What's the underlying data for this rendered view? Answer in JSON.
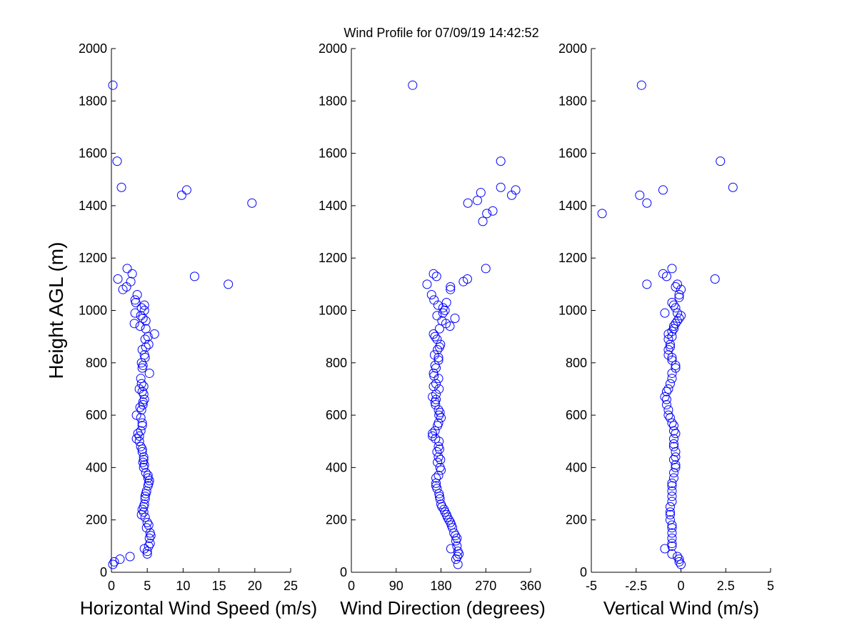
{
  "title": "Wind Profile for  07/09/19 14:42:52",
  "colors": {
    "marker": "#0000ff",
    "axis": "#000000",
    "background": "#ffffff"
  },
  "chart_data": [
    {
      "type": "scatter",
      "xlabel": "Horizontal Wind Speed (m/s)",
      "ylabel": "Height AGL (m)",
      "xlim": [
        0,
        25
      ],
      "ylim": [
        0,
        2000
      ],
      "xticks": [
        "0",
        "5",
        "10",
        "15",
        "20",
        "25"
      ],
      "yticks": [
        "0",
        "200",
        "400",
        "600",
        "800",
        "1000",
        "1200",
        "1400",
        "1600",
        "1800",
        "2000"
      ],
      "grid": false,
      "points": [
        [
          0.2,
          1860
        ],
        [
          0.8,
          1570
        ],
        [
          1.4,
          1470
        ],
        [
          9.8,
          1440
        ],
        [
          10.5,
          1460
        ],
        [
          19.6,
          1410
        ],
        [
          2.2,
          1160
        ],
        [
          2.9,
          1140
        ],
        [
          0.9,
          1120
        ],
        [
          11.6,
          1130
        ],
        [
          2.7,
          1110
        ],
        [
          16.3,
          1100
        ],
        [
          2.1,
          1090
        ],
        [
          1.6,
          1080
        ],
        [
          3.6,
          1060
        ],
        [
          3.3,
          1040
        ],
        [
          3.4,
          1030
        ],
        [
          4.6,
          1020
        ],
        [
          4.2,
          1010
        ],
        [
          4.6,
          1000
        ],
        [
          3.3,
          990
        ],
        [
          4.1,
          980
        ],
        [
          4.4,
          970
        ],
        [
          4.8,
          960
        ],
        [
          3.2,
          950
        ],
        [
          4.0,
          940
        ],
        [
          4.8,
          930
        ],
        [
          6.0,
          910
        ],
        [
          5.1,
          900
        ],
        [
          4.7,
          890
        ],
        [
          5.2,
          870
        ],
        [
          4.8,
          860
        ],
        [
          4.3,
          850
        ],
        [
          4.6,
          830
        ],
        [
          4.7,
          820
        ],
        [
          4.2,
          800
        ],
        [
          4.4,
          790
        ],
        [
          4.3,
          780
        ],
        [
          5.3,
          760
        ],
        [
          4.1,
          740
        ],
        [
          4.2,
          720
        ],
        [
          4.5,
          710
        ],
        [
          3.9,
          700
        ],
        [
          4.3,
          690
        ],
        [
          4.5,
          680
        ],
        [
          4.6,
          660
        ],
        [
          4.4,
          650
        ],
        [
          4.4,
          640
        ],
        [
          4.0,
          630
        ],
        [
          4.2,
          620
        ],
        [
          3.5,
          600
        ],
        [
          4.1,
          590
        ],
        [
          4.3,
          570
        ],
        [
          4.3,
          560
        ],
        [
          4.1,
          540
        ],
        [
          3.7,
          530
        ],
        [
          3.9,
          520
        ],
        [
          3.5,
          510
        ],
        [
          3.9,
          500
        ],
        [
          4.1,
          480
        ],
        [
          4.3,
          470
        ],
        [
          4.3,
          460
        ],
        [
          4.5,
          440
        ],
        [
          4.5,
          430
        ],
        [
          4.4,
          420
        ],
        [
          4.6,
          410
        ],
        [
          4.5,
          400
        ],
        [
          4.8,
          380
        ],
        [
          5.1,
          370
        ],
        [
          5.1,
          360
        ],
        [
          5.3,
          350
        ],
        [
          5.2,
          340
        ],
        [
          5.1,
          330
        ],
        [
          4.9,
          310
        ],
        [
          4.8,
          300
        ],
        [
          4.7,
          290
        ],
        [
          4.7,
          280
        ],
        [
          4.6,
          260
        ],
        [
          4.5,
          250
        ],
        [
          4.3,
          240
        ],
        [
          4.5,
          230
        ],
        [
          4.2,
          220
        ],
        [
          4.7,
          210
        ],
        [
          5.0,
          190
        ],
        [
          5.2,
          180
        ],
        [
          4.9,
          170
        ],
        [
          5.4,
          150
        ],
        [
          5.5,
          140
        ],
        [
          5.3,
          130
        ],
        [
          5.4,
          110
        ],
        [
          5.2,
          100
        ],
        [
          4.6,
          90
        ],
        [
          5.0,
          80
        ],
        [
          5.0,
          70
        ],
        [
          2.6,
          60
        ],
        [
          1.2,
          50
        ],
        [
          0.4,
          40
        ],
        [
          0.2,
          30
        ]
      ]
    },
    {
      "type": "scatter",
      "xlabel": "Wind Direction (degrees)",
      "ylabel": "",
      "xlim": [
        0,
        360
      ],
      "ylim": [
        0,
        2000
      ],
      "xticks": [
        "0",
        "90",
        "180",
        "270",
        "360"
      ],
      "yticks": [
        "0",
        "200",
        "400",
        "600",
        "800",
        "1000",
        "1200",
        "1400",
        "1600",
        "1800",
        "2000"
      ],
      "grid": false,
      "points": [
        [
          123,
          1860
        ],
        [
          300,
          1570
        ],
        [
          300,
          1470
        ],
        [
          330,
          1460
        ],
        [
          260,
          1450
        ],
        [
          322,
          1440
        ],
        [
          253,
          1420
        ],
        [
          234,
          1410
        ],
        [
          284,
          1380
        ],
        [
          272,
          1370
        ],
        [
          264,
          1340
        ],
        [
          270,
          1160
        ],
        [
          165,
          1140
        ],
        [
          171,
          1130
        ],
        [
          233,
          1120
        ],
        [
          225,
          1110
        ],
        [
          152,
          1100
        ],
        [
          199,
          1090
        ],
        [
          199,
          1080
        ],
        [
          161,
          1060
        ],
        [
          166,
          1040
        ],
        [
          191,
          1030
        ],
        [
          174,
          1020
        ],
        [
          184,
          1010
        ],
        [
          188,
          1000
        ],
        [
          184,
          990
        ],
        [
          172,
          980
        ],
        [
          208,
          970
        ],
        [
          182,
          960
        ],
        [
          190,
          950
        ],
        [
          198,
          940
        ],
        [
          177,
          930
        ],
        [
          165,
          910
        ],
        [
          168,
          900
        ],
        [
          172,
          890
        ],
        [
          179,
          870
        ],
        [
          177,
          860
        ],
        [
          173,
          850
        ],
        [
          167,
          830
        ],
        [
          175,
          820
        ],
        [
          175,
          810
        ],
        [
          168,
          790
        ],
        [
          170,
          780
        ],
        [
          165,
          760
        ],
        [
          166,
          750
        ],
        [
          175,
          740
        ],
        [
          170,
          720
        ],
        [
          165,
          710
        ],
        [
          176,
          700
        ],
        [
          170,
          680
        ],
        [
          163,
          670
        ],
        [
          170,
          660
        ],
        [
          168,
          650
        ],
        [
          169,
          640
        ],
        [
          175,
          620
        ],
        [
          178,
          610
        ],
        [
          176,
          600
        ],
        [
          180,
          590
        ],
        [
          175,
          570
        ],
        [
          173,
          560
        ],
        [
          168,
          540
        ],
        [
          163,
          530
        ],
        [
          163,
          520
        ],
        [
          169,
          510
        ],
        [
          176,
          500
        ],
        [
          175,
          480
        ],
        [
          177,
          470
        ],
        [
          172,
          460
        ],
        [
          175,
          440
        ],
        [
          179,
          430
        ],
        [
          173,
          420
        ],
        [
          178,
          400
        ],
        [
          180,
          390
        ],
        [
          175,
          370
        ],
        [
          170,
          360
        ],
        [
          170,
          340
        ],
        [
          170,
          330
        ],
        [
          172,
          320
        ],
        [
          176,
          300
        ],
        [
          177,
          290
        ],
        [
          178,
          280
        ],
        [
          180,
          260
        ],
        [
          182,
          250
        ],
        [
          186,
          240
        ],
        [
          188,
          230
        ],
        [
          191,
          220
        ],
        [
          193,
          210
        ],
        [
          196,
          200
        ],
        [
          199,
          190
        ],
        [
          201,
          180
        ],
        [
          203,
          170
        ],
        [
          206,
          150
        ],
        [
          209,
          140
        ],
        [
          212,
          130
        ],
        [
          210,
          120
        ],
        [
          212,
          100
        ],
        [
          200,
          90
        ],
        [
          214,
          80
        ],
        [
          216,
          70
        ],
        [
          213,
          60
        ],
        [
          210,
          50
        ],
        [
          214,
          30
        ]
      ]
    },
    {
      "type": "scatter",
      "xlabel": "Vertical Wind (m/s)",
      "ylabel": "",
      "xlim": [
        -5,
        5
      ],
      "ylim": [
        0,
        2000
      ],
      "xticks": [
        "-5",
        "-2.5",
        "0",
        "2.5",
        "5"
      ],
      "yticks": [
        "0",
        "200",
        "400",
        "600",
        "800",
        "1000",
        "1200",
        "1400",
        "1600",
        "1800",
        "2000"
      ],
      "grid": false,
      "points": [
        [
          -2.2,
          1860
        ],
        [
          2.2,
          1570
        ],
        [
          2.9,
          1470
        ],
        [
          -2.3,
          1440
        ],
        [
          -1.0,
          1460
        ],
        [
          -1.9,
          1410
        ],
        [
          -4.4,
          1370
        ],
        [
          -0.5,
          1160
        ],
        [
          -1.0,
          1140
        ],
        [
          -0.8,
          1130
        ],
        [
          1.9,
          1120
        ],
        [
          -1.9,
          1100
        ],
        [
          -0.2,
          1100
        ],
        [
          -0.3,
          1090
        ],
        [
          0.0,
          1080
        ],
        [
          -0.1,
          1060
        ],
        [
          -0.1,
          1050
        ],
        [
          -0.5,
          1030
        ],
        [
          -0.4,
          1020
        ],
        [
          -0.3,
          1010
        ],
        [
          -0.9,
          990
        ],
        [
          -0.2,
          990
        ],
        [
          0.0,
          980
        ],
        [
          -0.1,
          970
        ],
        [
          -0.2,
          960
        ],
        [
          -0.3,
          950
        ],
        [
          -0.4,
          940
        ],
        [
          -0.4,
          930
        ],
        [
          -0.5,
          920
        ],
        [
          -0.7,
          910
        ],
        [
          -0.5,
          900
        ],
        [
          -0.7,
          890
        ],
        [
          -0.6,
          870
        ],
        [
          -0.6,
          860
        ],
        [
          -0.7,
          850
        ],
        [
          -0.7,
          830
        ],
        [
          -0.5,
          820
        ],
        [
          -0.5,
          810
        ],
        [
          -0.3,
          790
        ],
        [
          -0.3,
          780
        ],
        [
          -0.5,
          760
        ],
        [
          -0.5,
          740
        ],
        [
          -0.6,
          720
        ],
        [
          -0.7,
          700
        ],
        [
          -0.8,
          690
        ],
        [
          -0.9,
          670
        ],
        [
          -0.8,
          660
        ],
        [
          -0.8,
          640
        ],
        [
          -0.7,
          620
        ],
        [
          -0.7,
          600
        ],
        [
          -0.6,
          590
        ],
        [
          -0.5,
          570
        ],
        [
          -0.4,
          560
        ],
        [
          -0.4,
          540
        ],
        [
          -0.3,
          530
        ],
        [
          -0.4,
          510
        ],
        [
          -0.4,
          490
        ],
        [
          -0.4,
          480
        ],
        [
          -0.3,
          460
        ],
        [
          -0.3,
          440
        ],
        [
          -0.4,
          430
        ],
        [
          -0.3,
          410
        ],
        [
          -0.3,
          400
        ],
        [
          -0.4,
          380
        ],
        [
          -0.4,
          360
        ],
        [
          -0.5,
          340
        ],
        [
          -0.5,
          330
        ],
        [
          -0.5,
          310
        ],
        [
          -0.5,
          290
        ],
        [
          -0.5,
          270
        ],
        [
          -0.6,
          250
        ],
        [
          -0.6,
          230
        ],
        [
          -0.6,
          220
        ],
        [
          -0.6,
          200
        ],
        [
          -0.5,
          180
        ],
        [
          -0.5,
          170
        ],
        [
          -0.5,
          150
        ],
        [
          -0.5,
          130
        ],
        [
          -0.5,
          110
        ],
        [
          -0.5,
          100
        ],
        [
          -0.9,
          90
        ],
        [
          -0.5,
          70
        ],
        [
          -0.2,
          60
        ],
        [
          -0.1,
          50
        ],
        [
          -0.1,
          40
        ],
        [
          0.0,
          30
        ]
      ]
    }
  ]
}
